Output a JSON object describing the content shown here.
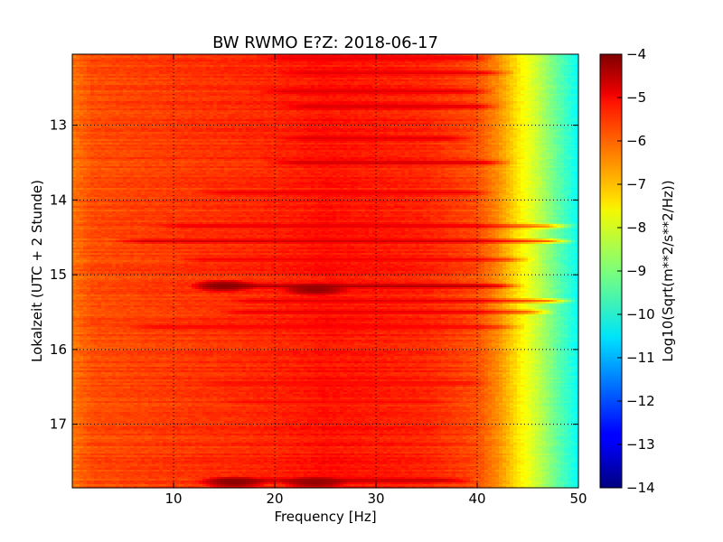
{
  "chart_data": {
    "type": "heatmap",
    "title": "BW RWMO E?Z: 2018-06-17",
    "xlabel": "Frequency [Hz]",
    "ylabel": "Lokalzeit (UTC + 2 Stunde)",
    "xlim": [
      0,
      50
    ],
    "ylim": [
      17.85,
      12.05
    ],
    "y_inverted": true,
    "xticks": [
      10,
      20,
      30,
      40,
      50
    ],
    "yticks": [
      13,
      14,
      15,
      16,
      17
    ],
    "grid": true,
    "colormap": "jet",
    "colorbar": {
      "label": "Log10(Sqrt(m**2/s**2/Hz))",
      "min": -14,
      "max": -4,
      "ticks": [
        -4,
        -5,
        -6,
        -7,
        -8,
        -9,
        -10,
        -11,
        -12,
        -13,
        -14
      ]
    },
    "spectrum_profile": {
      "frequency_hz": [
        0,
        2,
        10,
        20,
        25,
        30,
        35,
        40,
        42,
        44,
        46,
        48,
        50
      ],
      "log10_level": [
        -6.4,
        -6.0,
        -5.8,
        -5.6,
        -5.4,
        -5.5,
        -5.6,
        -6.0,
        -6.6,
        -7.5,
        -8.3,
        -9.3,
        -10.2
      ]
    },
    "strong_bands": [
      {
        "time": 12.1,
        "f_start": 18,
        "f_end": 42,
        "level": -5.0
      },
      {
        "time": 12.3,
        "f_start": 20,
        "f_end": 44,
        "level": -5.0
      },
      {
        "time": 12.55,
        "f_start": 18,
        "f_end": 42,
        "level": -4.9
      },
      {
        "time": 12.75,
        "f_start": 20,
        "f_end": 43,
        "level": -4.8
      },
      {
        "time": 13.18,
        "f_start": 20,
        "f_end": 40,
        "level": -4.9
      },
      {
        "time": 13.5,
        "f_start": 19,
        "f_end": 44,
        "level": -4.7
      },
      {
        "time": 13.9,
        "f_start": 12,
        "f_end": 42,
        "level": -5.1
      },
      {
        "time": 14.35,
        "f_start": 8,
        "f_end": 50,
        "level": -5.0
      },
      {
        "time": 14.55,
        "f_start": 4,
        "f_end": 50,
        "level": -4.8
      },
      {
        "time": 14.8,
        "f_start": 10,
        "f_end": 46,
        "level": -5.1
      },
      {
        "time": 15.15,
        "f_start": 12,
        "f_end": 45,
        "level": -4.4
      },
      {
        "time": 15.35,
        "f_start": 15,
        "f_end": 50,
        "level": -5.0
      },
      {
        "time": 15.5,
        "f_start": 14,
        "f_end": 48,
        "level": -5.0
      },
      {
        "time": 15.7,
        "f_start": 5,
        "f_end": 45,
        "level": -5.2
      },
      {
        "time": 16.45,
        "f_start": 12,
        "f_end": 42,
        "level": -5.3
      },
      {
        "time": 16.7,
        "f_start": 14,
        "f_end": 38,
        "level": -5.3
      },
      {
        "time": 17.75,
        "f_start": 12,
        "f_end": 40,
        "level": -4.6
      }
    ],
    "hotspots": [
      {
        "time": 15.15,
        "frequency": 15.0,
        "level": -4.1
      },
      {
        "time": 15.2,
        "frequency": 24.0,
        "level": -4.2
      },
      {
        "time": 17.78,
        "frequency": 16.0,
        "level": -4.1
      },
      {
        "time": 17.78,
        "frequency": 24.0,
        "level": -4.2
      }
    ]
  }
}
